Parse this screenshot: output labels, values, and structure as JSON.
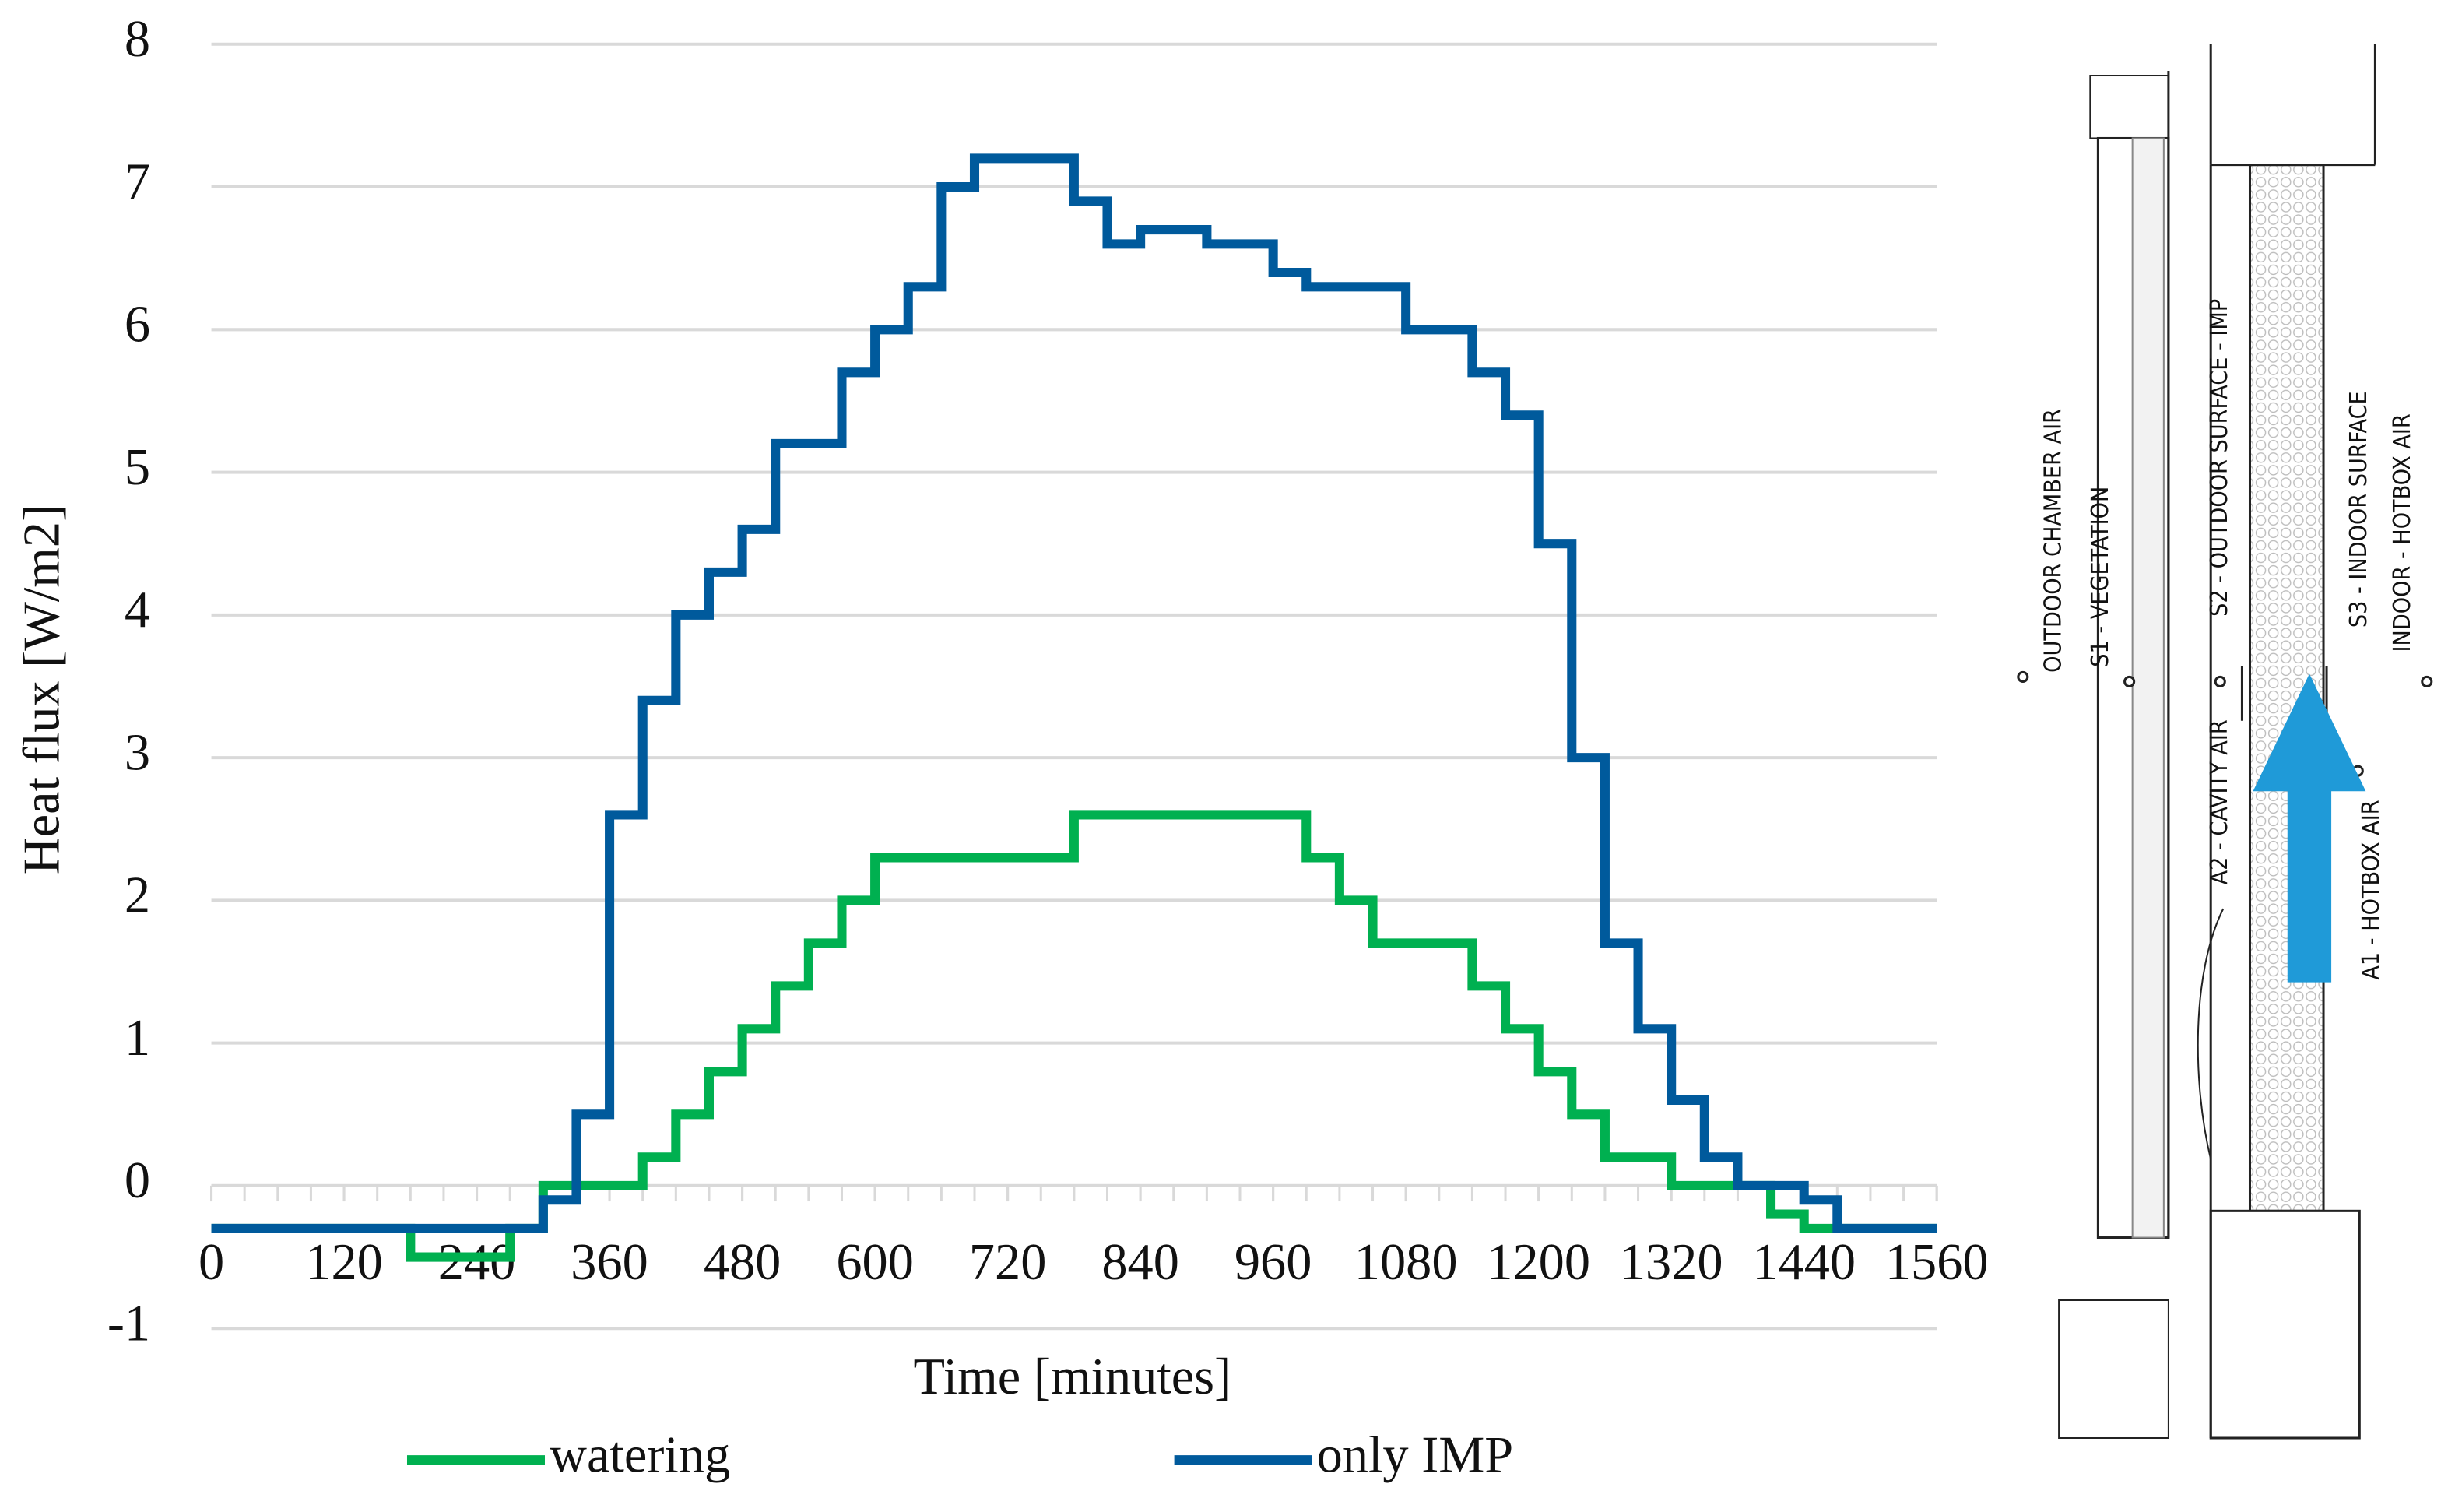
{
  "chart_data": {
    "type": "line",
    "step": true,
    "y_label": "Heat flux [W/m2]",
    "x_label": "Time [minutes]",
    "x": [
      0,
      30,
      60,
      90,
      120,
      150,
      180,
      210,
      240,
      270,
      300,
      330,
      360,
      390,
      420,
      450,
      480,
      510,
      540,
      570,
      600,
      630,
      660,
      690,
      720,
      750,
      780,
      810,
      840,
      870,
      900,
      930,
      960,
      990,
      1020,
      1050,
      1080,
      1110,
      1140,
      1170,
      1200,
      1230,
      1260,
      1290,
      1320,
      1350,
      1380,
      1410,
      1440,
      1470,
      1500,
      1530,
      1560
    ],
    "series": [
      {
        "name": "watering",
        "color": "#00b050",
        "values": [
          -0.3,
          -0.3,
          -0.3,
          -0.3,
          -0.3,
          -0.3,
          -0.5,
          -0.5,
          -0.5,
          -0.3,
          0,
          0,
          0,
          0.2,
          0.5,
          0.8,
          1.1,
          1.4,
          1.7,
          2.0,
          2.3,
          2.3,
          2.3,
          2.3,
          2.3,
          2.3,
          2.6,
          2.6,
          2.6,
          2.6,
          2.6,
          2.6,
          2.6,
          2.3,
          2.0,
          1.7,
          1.7,
          1.7,
          1.4,
          1.1,
          0.8,
          0.5,
          0.2,
          0.2,
          0,
          0,
          0,
          -0.2,
          -0.3,
          -0.3,
          -0.3,
          -0.3,
          -0.3
        ]
      },
      {
        "name": "only IMP",
        "color": "#005a9c",
        "values": [
          -0.3,
          -0.3,
          -0.3,
          -0.3,
          -0.3,
          -0.3,
          -0.3,
          -0.3,
          -0.3,
          -0.3,
          -0.1,
          0.5,
          2.6,
          3.4,
          4.0,
          4.3,
          4.6,
          5.2,
          5.2,
          5.7,
          6.0,
          6.3,
          7.0,
          7.2,
          7.2,
          7.2,
          6.9,
          6.6,
          6.7,
          6.7,
          6.6,
          6.6,
          6.4,
          6.3,
          6.3,
          6.3,
          6.0,
          6.0,
          5.7,
          5.4,
          4.5,
          3.0,
          1.7,
          1.1,
          0.6,
          0.2,
          0,
          0,
          -0.1,
          -0.3,
          -0.3,
          -0.3,
          -0.3
        ]
      }
    ],
    "xlim": [
      0,
      1560
    ],
    "xticks": [
      0,
      120,
      240,
      360,
      480,
      600,
      720,
      840,
      960,
      1080,
      1200,
      1320,
      1440,
      1560
    ],
    "ylim": [
      -1,
      8
    ],
    "yticks": [
      -1,
      0,
      1,
      2,
      3,
      4,
      5,
      6,
      7,
      8
    ],
    "grid": true,
    "legend": "bottom"
  },
  "diagram": {
    "labels": [
      "OUTDOOR CHAMBER AIR",
      "S1 - VEGETATION",
      "A2 - CAVITY AIR",
      "S2 - OUTDOOR SURFACE - IMP",
      "A1 - HOTBOX AIR",
      "S3 - INDOOR SURFACE",
      "INDOOR - HOTBOX AIR"
    ]
  }
}
